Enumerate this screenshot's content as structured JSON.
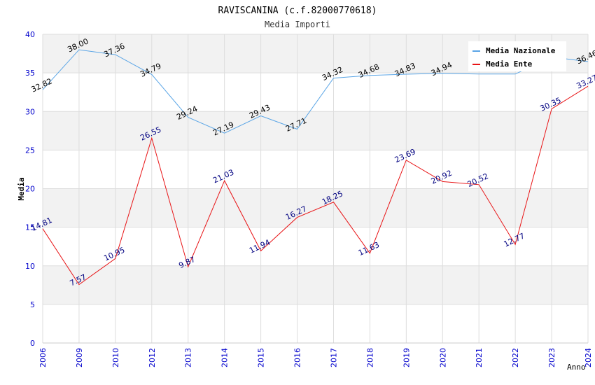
{
  "chart_data": {
    "type": "line",
    "title": "RAVISCANINA (c.f.82000770618)",
    "subtitle": "Media Importi",
    "xlabel": "Anno",
    "ylabel": "Media",
    "ylim": [
      0,
      40
    ],
    "yticks": [
      "0",
      "5",
      "10",
      "15",
      "20",
      "25",
      "30",
      "35",
      "40"
    ],
    "categories": [
      "2006",
      "2009",
      "2010",
      "2012",
      "2013",
      "2014",
      "2015",
      "2016",
      "2017",
      "2018",
      "2019",
      "2020",
      "2021",
      "2022",
      "2023",
      "2024"
    ],
    "legend_position": "top-right",
    "series": [
      {
        "name": "Media Nazionale",
        "color": "#5aa5e6",
        "label_color": "#000000",
        "values": [
          32.82,
          38.0,
          37.36,
          34.79,
          29.24,
          27.19,
          29.43,
          27.71,
          34.32,
          34.68,
          34.83,
          34.94,
          34.85,
          34.85,
          37.05,
          36.46
        ],
        "labels": [
          "32.82",
          "38.00",
          "37.36",
          "34.79",
          "29.24",
          "27.19",
          "29.43",
          "27.71",
          "34.32",
          "34.68",
          "34.83",
          "34.94",
          "",
          "",
          "",
          "36.46"
        ]
      },
      {
        "name": "Media Ente",
        "color": "#e81416",
        "label_color": "#000080",
        "values": [
          14.81,
          7.57,
          10.95,
          26.55,
          9.87,
          21.03,
          11.94,
          16.27,
          18.25,
          11.63,
          23.69,
          20.92,
          20.52,
          12.77,
          30.35,
          33.27
        ],
        "labels": [
          "14.81",
          "7.57",
          "10.95",
          "26.55",
          "9.87",
          "21.03",
          "11.94",
          "16.27",
          "18.25",
          "11.63",
          "23.69",
          "20.92",
          "20.52",
          "12.77",
          "30.35",
          "33.27"
        ]
      }
    ]
  },
  "colors": {
    "axis_text": "#0000cc",
    "band": "#f2f2f2",
    "grid": "#dddddd"
  }
}
